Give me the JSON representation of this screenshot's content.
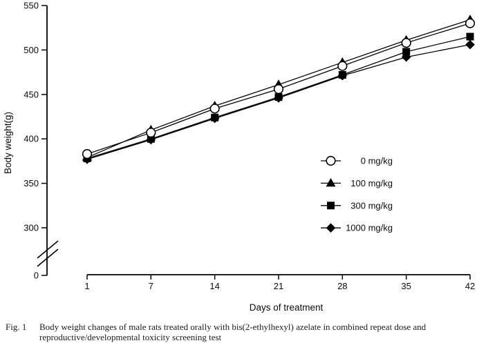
{
  "figure": {
    "caption_label": "Fig. 1",
    "caption_text": "Body weight changes of male rats treated orally with bis(2-ethylhexyl) azelate in combined repeat dose and reproductive/developmental toxicity screening test"
  },
  "chart_data": {
    "type": "line",
    "title": "",
    "xlabel": "Days of treatment",
    "ylabel": "Body weight(g)",
    "x": [
      1,
      7,
      14,
      21,
      28,
      35,
      42
    ],
    "x_tick_labels": [
      "1",
      "7",
      "14",
      "21",
      "28",
      "35",
      "42"
    ],
    "y_ticks": [
      0,
      300,
      350,
      400,
      450,
      500,
      550
    ],
    "y_axis_break_between": [
      0,
      300
    ],
    "ylim_main": [
      300,
      550
    ],
    "grid": false,
    "legend_position": "middle-right",
    "series": [
      {
        "name": "0 mg/kg",
        "marker": "open-circle",
        "color": "#000000",
        "values": [
          383,
          407,
          434,
          456,
          482,
          508,
          530
        ]
      },
      {
        "name": "100 mg/kg",
        "marker": "filled-triangle",
        "color": "#000000",
        "values": [
          379,
          410,
          437,
          461,
          486,
          511,
          534
        ]
      },
      {
        "name": "300 mg/kg",
        "marker": "filled-square",
        "color": "#000000",
        "values": [
          378,
          400,
          424,
          447,
          472,
          498,
          515
        ]
      },
      {
        "name": "1000 mg/kg",
        "marker": "filled-diamond",
        "color": "#000000",
        "values": [
          377,
          399,
          423,
          446,
          471,
          492,
          506
        ]
      }
    ],
    "colors": {
      "foreground": "#000000",
      "background": "#ffffff"
    }
  }
}
